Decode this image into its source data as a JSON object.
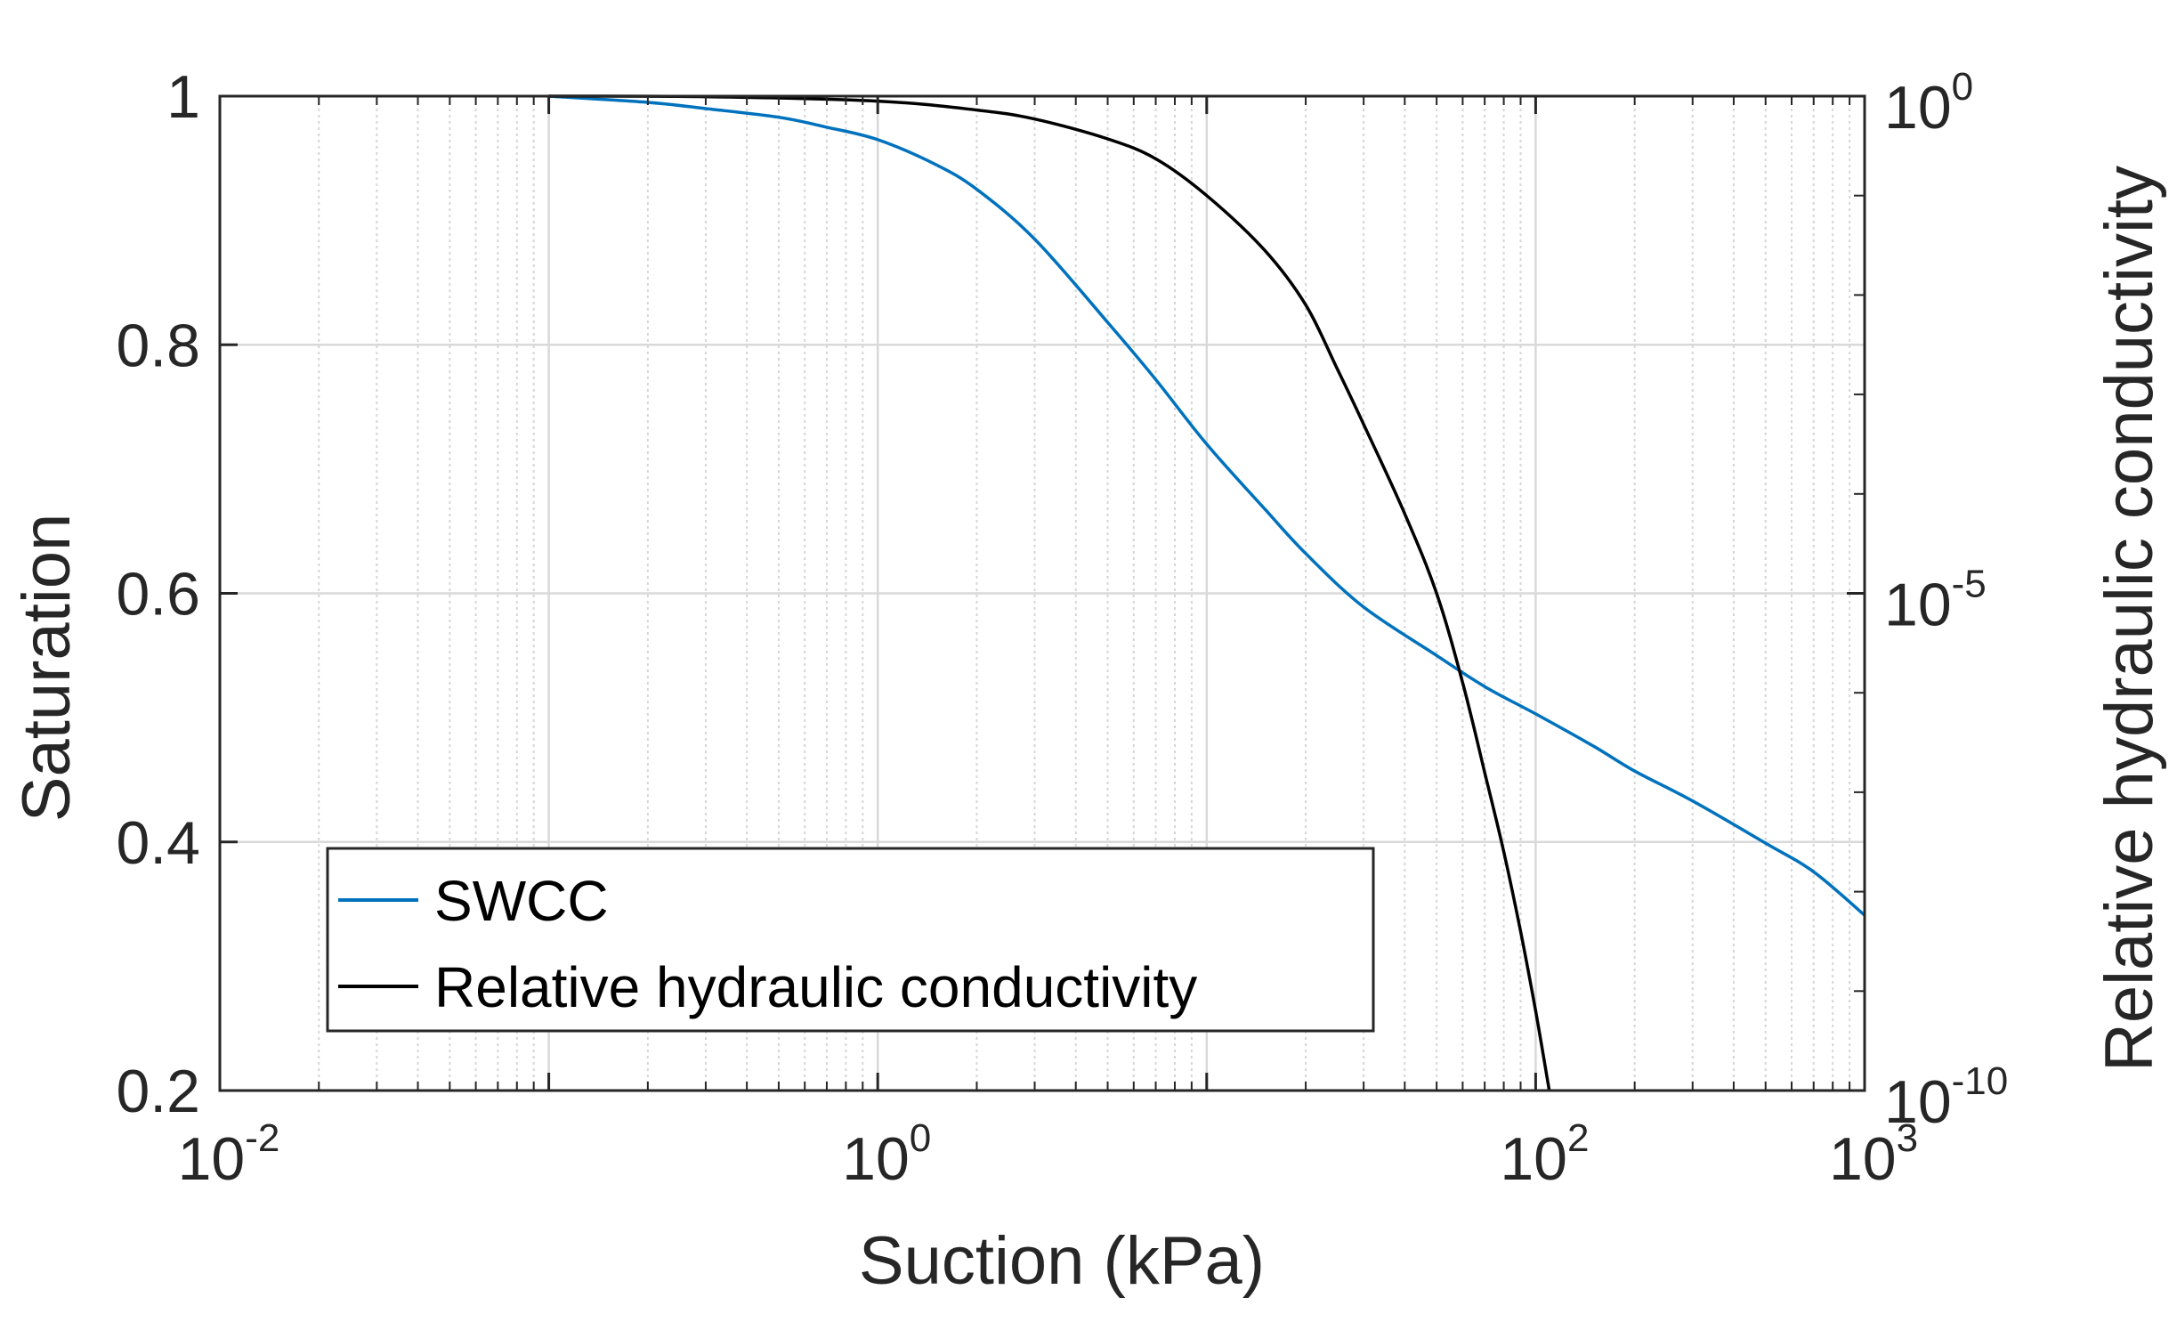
{
  "chart_data": {
    "type": "line",
    "title": "",
    "xlabel": "Suction (kPa)",
    "ylabel_left": "Saturation",
    "ylabel_right": "Relative hydraulic conductivity",
    "xscale": "log",
    "xlim": [
      0.01,
      1000
    ],
    "ylim_left": [
      0.2,
      1.0
    ],
    "ylim_right_log10": [
      -10,
      0
    ],
    "grid": true,
    "legend_position": "bottom-left",
    "x_ticks": [
      {
        "value": 0.01,
        "base": "10",
        "exp": "-2"
      },
      {
        "value": 1,
        "base": "10",
        "exp": "0"
      },
      {
        "value": 100,
        "base": "10",
        "exp": "2"
      },
      {
        "value": 1000,
        "base": "10",
        "exp": "3"
      }
    ],
    "y_left_ticks": [
      "0.2",
      "0.4",
      "0.6",
      "0.8",
      "1"
    ],
    "y_right_ticks": [
      {
        "value_log10": 0,
        "base": "10",
        "exp": "0"
      },
      {
        "value_log10": -5,
        "base": "10",
        "exp": "-5"
      },
      {
        "value_log10": -10,
        "base": "10",
        "exp": "-10"
      }
    ],
    "series": [
      {
        "name": "SWCC",
        "axis": "left",
        "color": "#0072BD",
        "x": [
          0.1,
          0.2,
          0.3,
          0.5,
          0.7,
          1,
          1.5,
          2,
          3,
          5,
          7,
          10,
          15,
          20,
          30,
          50,
          70,
          100,
          150,
          200,
          300,
          500,
          700,
          1000
        ],
        "values": [
          1.0,
          0.995,
          0.99,
          0.983,
          0.975,
          0.965,
          0.945,
          0.925,
          0.885,
          0.818,
          0.772,
          0.72,
          0.668,
          0.632,
          0.589,
          0.55,
          0.525,
          0.503,
          0.477,
          0.457,
          0.433,
          0.399,
          0.376,
          0.341
        ]
      },
      {
        "name": "Relative hydraulic conductivity",
        "axis": "right",
        "color": "#000000",
        "x": [
          0.1,
          0.3,
          1,
          2,
          3,
          5,
          7,
          10,
          15,
          20,
          25,
          30,
          40,
          50,
          60,
          70,
          80,
          90,
          100,
          110
        ],
        "values_log10": [
          0,
          -0.005,
          -0.05,
          -0.14,
          -0.23,
          -0.43,
          -0.63,
          -1.0,
          -1.55,
          -2.1,
          -2.75,
          -3.3,
          -4.2,
          -5.0,
          -5.9,
          -6.8,
          -7.6,
          -8.4,
          -9.2,
          -10.0
        ]
      }
    ]
  }
}
